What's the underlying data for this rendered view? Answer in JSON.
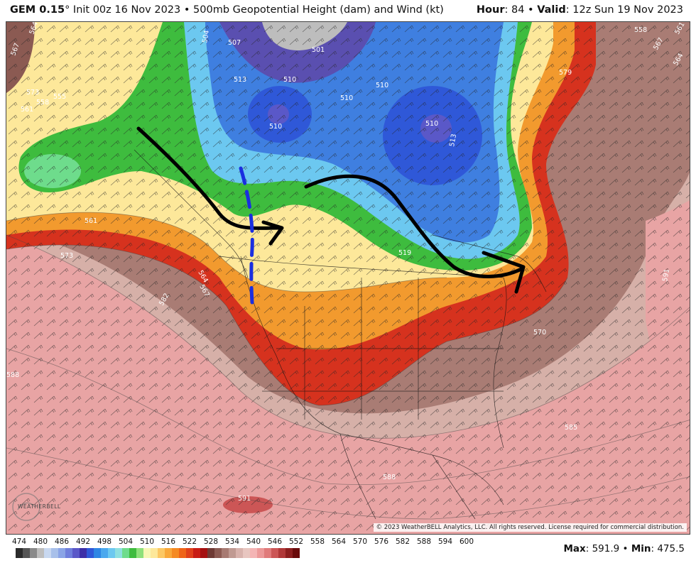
{
  "header": {
    "model": "GEM 0.15",
    "model_suffix": "°",
    "init": "Init 00z 16 Nov 2023",
    "sep": "•",
    "product": "500mb Geopotential Height (dam) and Wind (kt)",
    "hour_label": "Hour",
    "hour_value": ": 84",
    "valid_label": "Valid",
    "valid_value": ": 12z Sun 19 Nov 2023"
  },
  "map": {
    "contour_labels": [
      "564",
      "567",
      "573",
      "558",
      "555",
      "561",
      "504",
      "507",
      "501",
      "513",
      "510",
      "510",
      "510",
      "510",
      "510",
      "513",
      "519",
      "561",
      "573",
      "564",
      "567",
      "588",
      "570",
      "585",
      "582",
      "588",
      "591",
      "558",
      "567",
      "564",
      "579",
      "591",
      "561"
    ],
    "copyright": "© 2023 WeatherBELL Analytics, LLC. All rights reserved. License required for commercial distribution.",
    "logo_text": "WEATHERBELL",
    "colors": {
      "deep_trough": "#5a4fb0",
      "blue": "#3f7fe0",
      "green": "#3ebc3e",
      "yellow": "#fde89a",
      "orange": "#f29a2e",
      "red": "#d8281c",
      "brown": "#8b5a52",
      "pink": "#e79a9a"
    }
  },
  "legend": {
    "labels": [
      "474",
      "480",
      "486",
      "492",
      "498",
      "504",
      "510",
      "516",
      "522",
      "528",
      "534",
      "540",
      "546",
      "552",
      "558",
      "564",
      "570",
      "576",
      "582",
      "588",
      "594",
      "600"
    ],
    "colors": [
      "#2b2b2b",
      "#555555",
      "#8a8a8a",
      "#bdbdbd",
      "#c8d8f0",
      "#a8c0ea",
      "#8aa4e6",
      "#6f7fdc",
      "#5a58c8",
      "#3c2fa8",
      "#2f58d8",
      "#2e86e4",
      "#4aa8ee",
      "#6cc8f0",
      "#8ee0e0",
      "#6edc8c",
      "#3ebc3e",
      "#8ee07a",
      "#f7f7b4",
      "#fde89a",
      "#fcc864",
      "#f9a83a",
      "#f58a22",
      "#ef6418",
      "#e0401a",
      "#c81c14",
      "#a51010",
      "#6e3a34",
      "#8b5a52",
      "#a77a72",
      "#c09a92",
      "#d8b2ac",
      "#e8c6c0",
      "#f4b4b4",
      "#ec9898",
      "#e07a7a",
      "#cc5656",
      "#b03838",
      "#8c1e1e",
      "#6a0a0a"
    ]
  },
  "stats": {
    "max_label": "Max",
    "max_value": ": 591.9",
    "sep": "•",
    "min_label": "Min",
    "min_value": ": 475.5"
  }
}
